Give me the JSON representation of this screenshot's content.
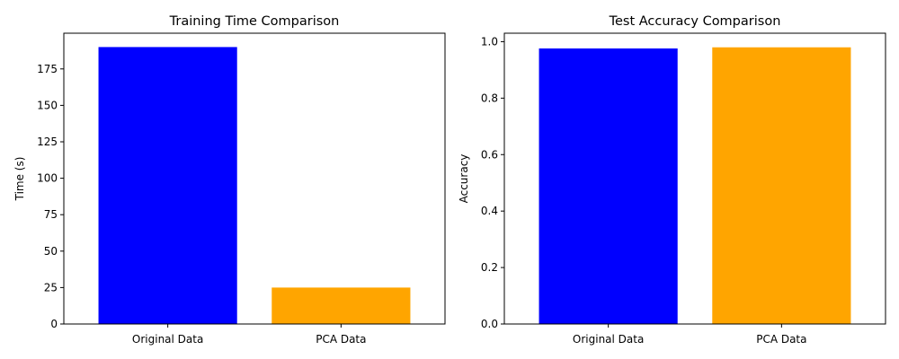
{
  "chart_data": [
    {
      "type": "bar",
      "title": "Training Time Comparison",
      "xlabel": "",
      "ylabel": "Time (s)",
      "categories": [
        "Original Data",
        "PCA Data"
      ],
      "values": [
        190,
        25
      ],
      "colors": [
        "#0000ff",
        "#ffa500"
      ],
      "ylim": [
        0,
        199.5
      ],
      "yticks": [
        0,
        25,
        50,
        75,
        100,
        125,
        150,
        175
      ],
      "ytick_labels": [
        "0",
        "25",
        "50",
        "75",
        "100",
        "125",
        "150",
        "175"
      ],
      "grid": false
    },
    {
      "type": "bar",
      "title": "Test Accuracy Comparison",
      "xlabel": "",
      "ylabel": "Accuracy",
      "categories": [
        "Original Data",
        "PCA Data"
      ],
      "values": [
        0.976,
        0.98
      ],
      "colors": [
        "#0000ff",
        "#ffa500"
      ],
      "ylim": [
        0,
        1.03
      ],
      "yticks": [
        0,
        0.2,
        0.4,
        0.6,
        0.8,
        1.0
      ],
      "ytick_labels": [
        "0.0",
        "0.2",
        "0.4",
        "0.6",
        "0.8",
        "1.0"
      ],
      "grid": false
    }
  ]
}
